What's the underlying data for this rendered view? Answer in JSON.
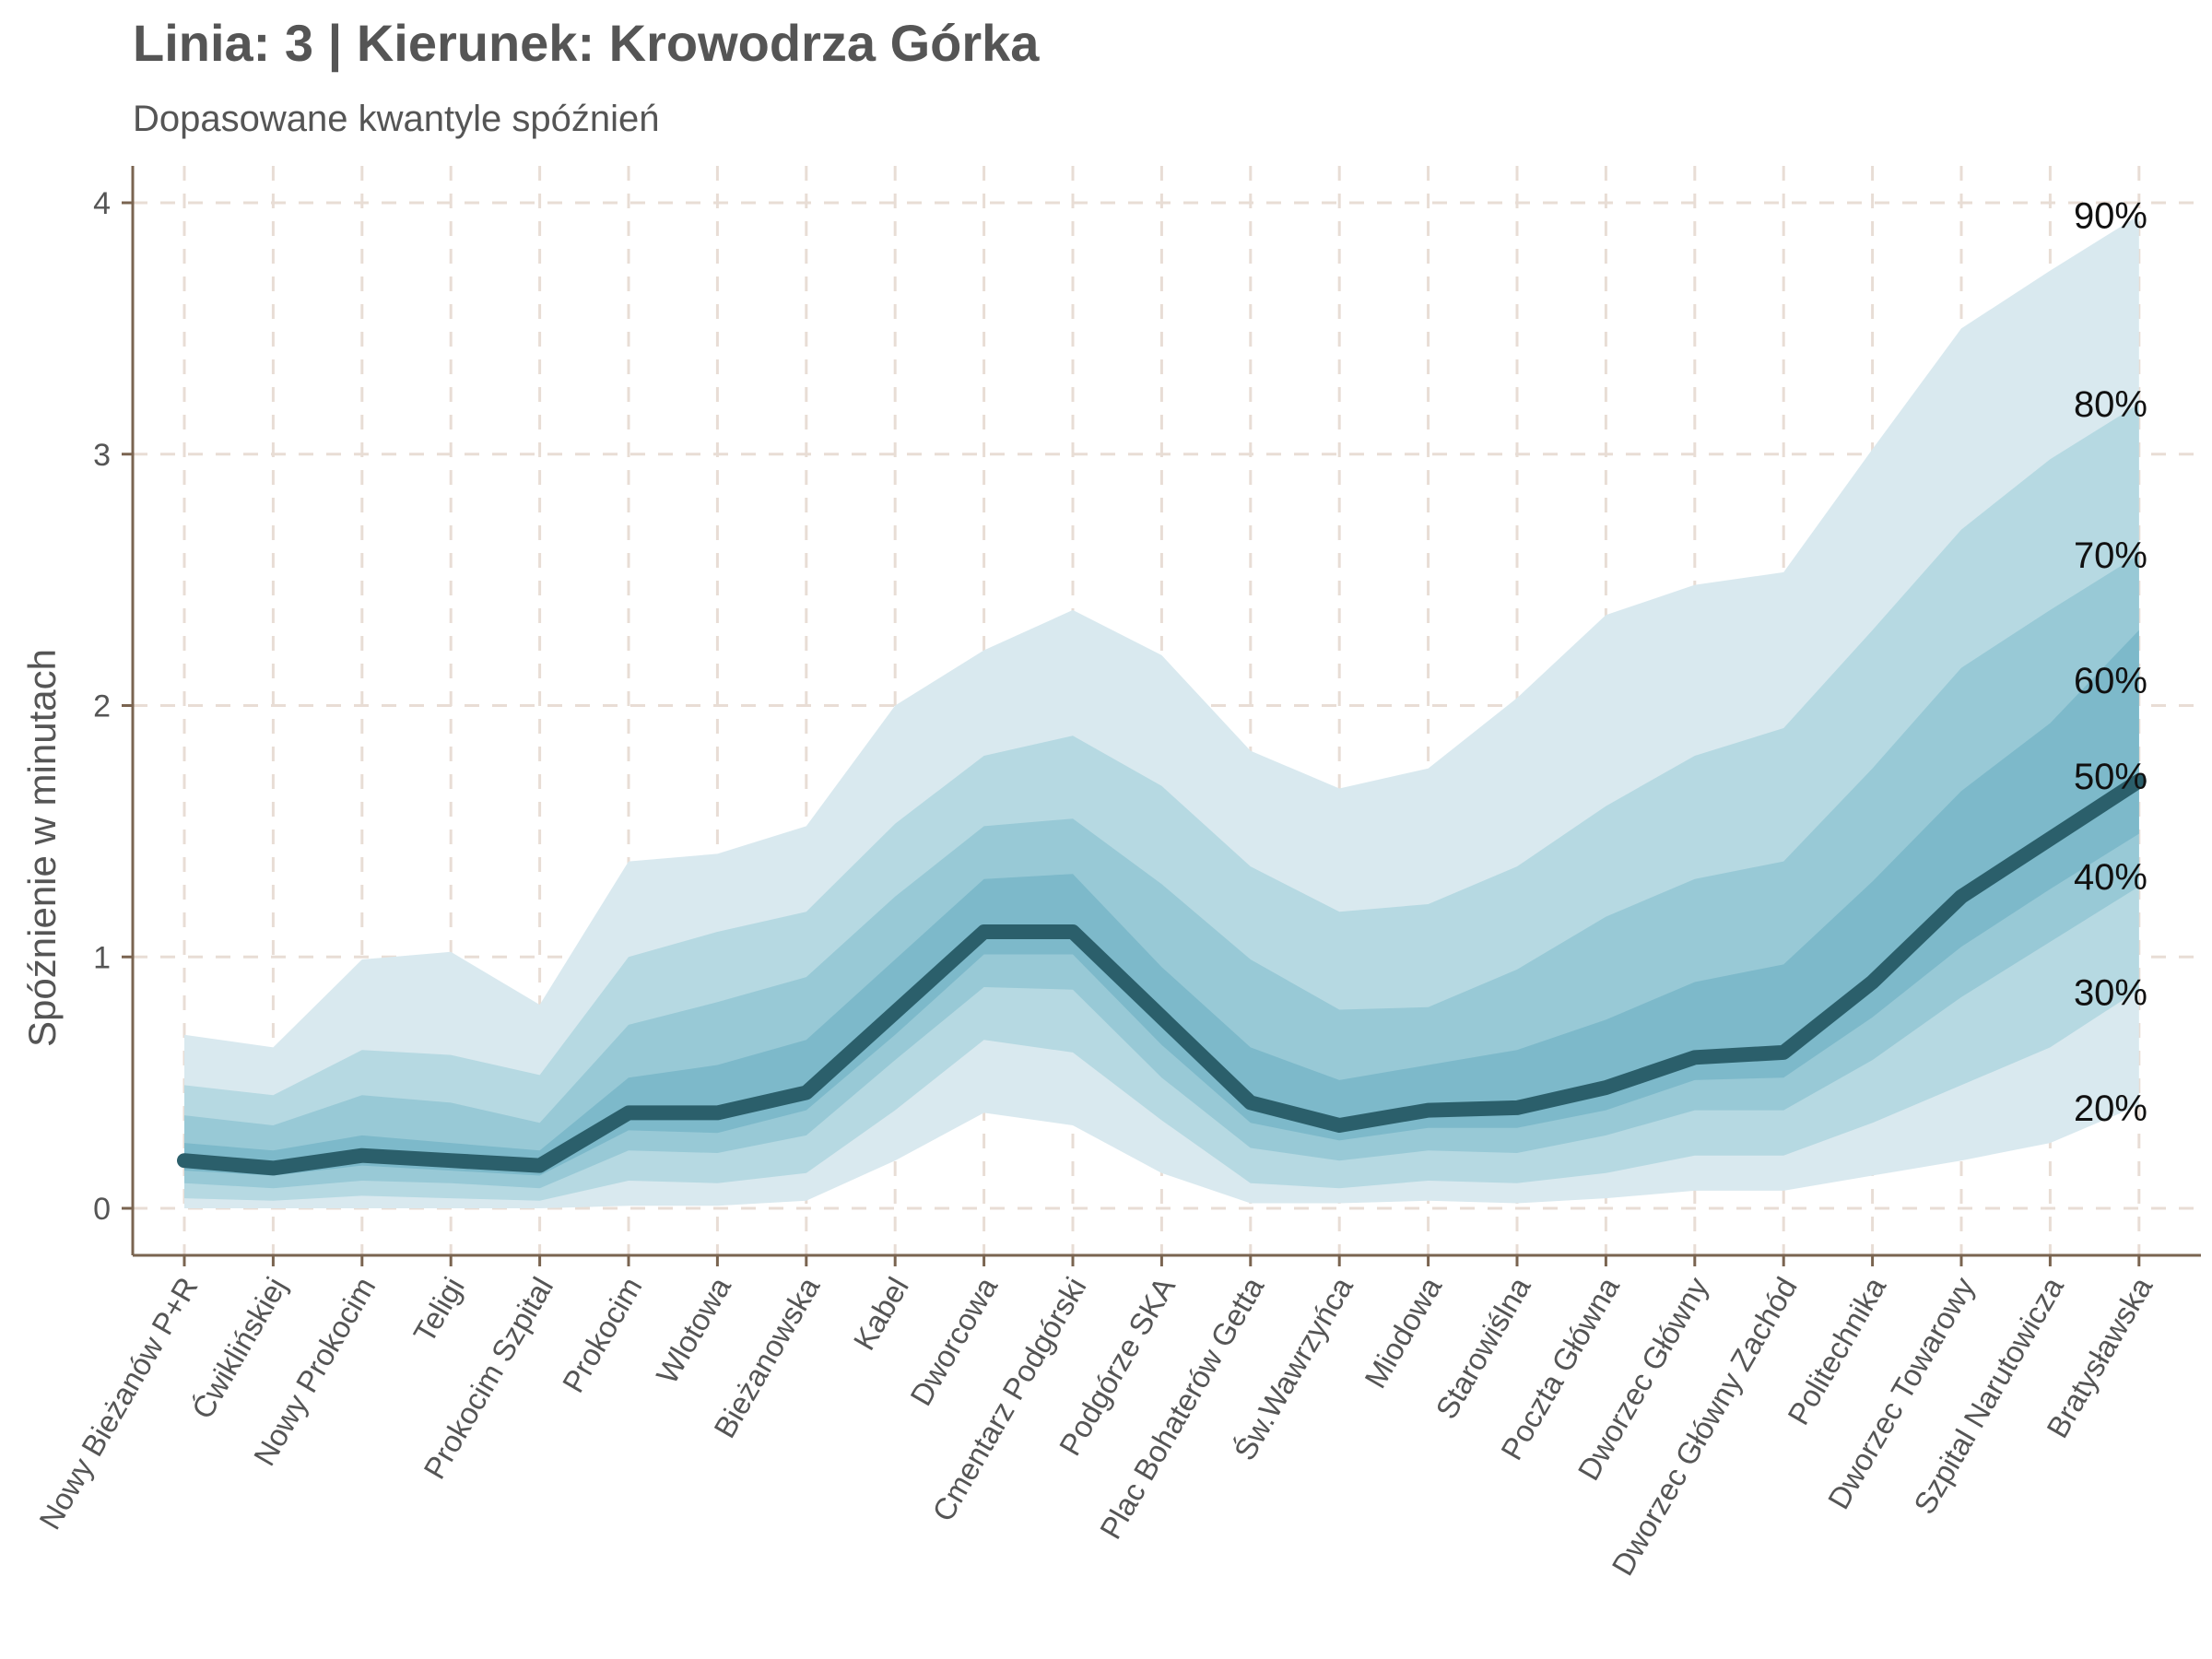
{
  "chart_data": {
    "type": "area",
    "title": "Linia: 3 | Kierunek: Krowodrza Górka",
    "subtitle": "Dopasowane kwantyle spóźnień",
    "xlabel": "",
    "ylabel": "Spóźnienie w minutach",
    "ylim": [
      -0.19,
      4.16
    ],
    "yticks": [
      "0",
      "1",
      "2",
      "3",
      "4"
    ],
    "grid": true,
    "colors": {
      "band_outer": "#d9e9ef",
      "band_2": "#b6d9e2",
      "band_3": "#98c9d6",
      "band_inner": "#7db9ca",
      "median_line": "#2b5f6b",
      "grid": "#e8ddd5",
      "axis": "#7a6450"
    },
    "categories": [
      "Nowy Bieżanów P+R",
      "Ćwiklińskiej",
      "Nowy Prokocim",
      "Teligi",
      "Prokocim Szpital",
      "Prokocim",
      "Wlotowa",
      "Bieżanowska",
      "Kabel",
      "Dworcowa",
      "Cmentarz Podgórski",
      "Podgórze SKA",
      "Plac Bohaterów Getta",
      "Św.Wawrzyńca",
      "Miodowa",
      "Starowiślna",
      "Poczta Główna",
      "Dworzec Główny",
      "Dworzec Główny Zachód",
      "Politechnika",
      "Dworzec Towarowy",
      "Szpital Narutowicza",
      "Bratysławska"
    ],
    "series": [
      {
        "name": "20%",
        "values": [
          0.04,
          0.03,
          0.05,
          0.04,
          0.03,
          0.11,
          0.1,
          0.14,
          0.39,
          0.67,
          0.62,
          0.35,
          0.1,
          0.08,
          0.11,
          0.1,
          0.14,
          0.21,
          0.21,
          0.34,
          0.49,
          0.64,
          0.87
        ]
      },
      {
        "name": "30%",
        "values": [
          0.1,
          0.08,
          0.11,
          0.1,
          0.08,
          0.23,
          0.22,
          0.29,
          0.59,
          0.88,
          0.87,
          0.52,
          0.24,
          0.19,
          0.23,
          0.22,
          0.29,
          0.39,
          0.39,
          0.59,
          0.84,
          1.06,
          1.28
        ]
      },
      {
        "name": "40%",
        "values": [
          0.15,
          0.13,
          0.17,
          0.15,
          0.13,
          0.31,
          0.3,
          0.39,
          0.69,
          1.01,
          1.01,
          0.65,
          0.34,
          0.27,
          0.32,
          0.32,
          0.39,
          0.51,
          0.52,
          0.76,
          1.04,
          1.27,
          1.49
        ]
      },
      {
        "name": "50%",
        "values": [
          0.19,
          0.16,
          0.21,
          0.19,
          0.17,
          0.38,
          0.38,
          0.46,
          0.78,
          1.1,
          1.1,
          0.76,
          0.42,
          0.33,
          0.39,
          0.4,
          0.48,
          0.6,
          0.62,
          0.9,
          1.24,
          1.47,
          1.7
        ]
      },
      {
        "name": "60%",
        "values": [
          0.26,
          0.23,
          0.29,
          0.26,
          0.23,
          0.52,
          0.57,
          0.67,
          0.99,
          1.31,
          1.33,
          0.96,
          0.64,
          0.51,
          0.57,
          0.63,
          0.75,
          0.9,
          0.97,
          1.3,
          1.66,
          1.93,
          2.3
        ]
      },
      {
        "name": "70%",
        "values": [
          0.37,
          0.33,
          0.45,
          0.42,
          0.34,
          0.73,
          0.82,
          0.92,
          1.24,
          1.52,
          1.55,
          1.29,
          0.99,
          0.79,
          0.8,
          0.95,
          1.16,
          1.31,
          1.38,
          1.75,
          2.15,
          2.38,
          2.6
        ]
      },
      {
        "name": "80%",
        "values": [
          0.49,
          0.45,
          0.63,
          0.61,
          0.53,
          1.0,
          1.1,
          1.18,
          1.53,
          1.8,
          1.88,
          1.68,
          1.36,
          1.18,
          1.21,
          1.36,
          1.6,
          1.8,
          1.91,
          2.3,
          2.7,
          2.98,
          3.2
        ]
      },
      {
        "name": "90%",
        "values": [
          0.69,
          0.64,
          0.99,
          1.02,
          0.81,
          1.38,
          1.41,
          1.52,
          2.0,
          2.22,
          2.38,
          2.2,
          1.82,
          1.67,
          1.75,
          2.03,
          2.36,
          2.48,
          2.53,
          3.02,
          3.5,
          3.73,
          3.95
        ]
      }
    ],
    "band_floor": [
      0.0,
      0.0,
      0.0,
      0.0,
      0.0,
      0.01,
      0.01,
      0.03,
      0.19,
      0.38,
      0.33,
      0.14,
      0.02,
      0.02,
      0.03,
      0.02,
      0.04,
      0.07,
      0.07,
      0.13,
      0.19,
      0.26,
      0.41
    ],
    "quantile_labels": [
      {
        "text": "90%",
        "y": 3.95
      },
      {
        "text": "80%",
        "y": 3.2
      },
      {
        "text": "70%",
        "y": 2.6
      },
      {
        "text": "60%",
        "y": 2.1
      },
      {
        "text": "50%",
        "y": 1.72
      },
      {
        "text": "40%",
        "y": 1.32
      },
      {
        "text": "30%",
        "y": 0.86
      },
      {
        "text": "20%",
        "y": 0.4
      }
    ]
  }
}
